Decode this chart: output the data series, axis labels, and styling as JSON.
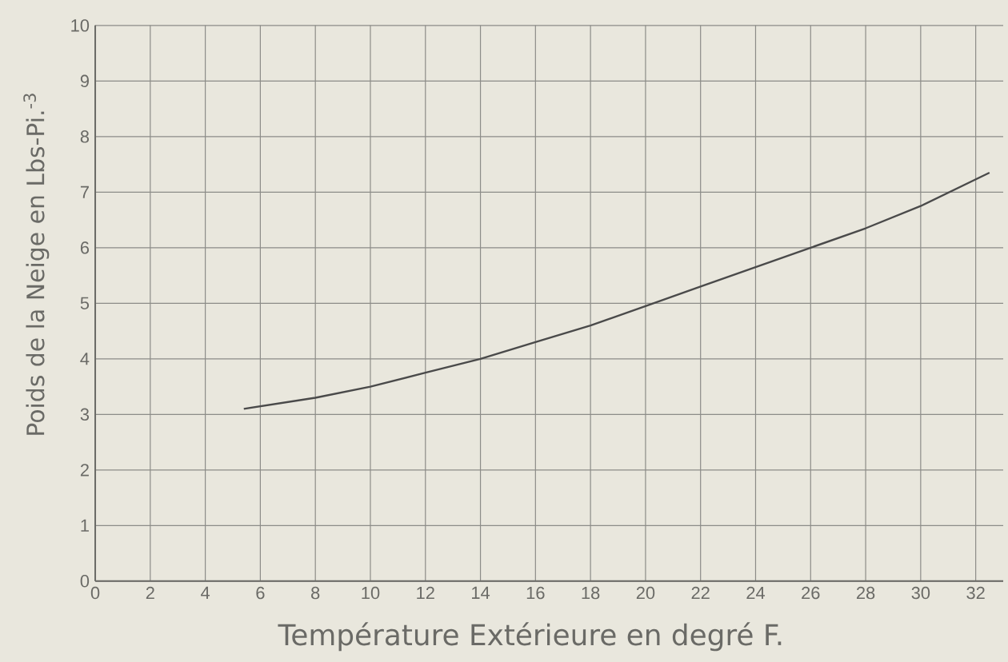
{
  "chart_data": {
    "type": "line",
    "xlabel": "Température Extérieure en degré F.",
    "ylabel": "Poids de la Neige en Lbs-Pi.$^{-3}$",
    "x": [
      5.4,
      8,
      10,
      12,
      14,
      16,
      18,
      20,
      22,
      24,
      26,
      28,
      30,
      32.5
    ],
    "series": [
      {
        "color": "#4a4a4a",
        "values": [
          3.1,
          3.3,
          3.5,
          3.75,
          4.0,
          4.3,
          4.6,
          4.95,
          5.3,
          5.65,
          6.0,
          6.35,
          6.75,
          7.35
        ]
      }
    ],
    "xlim": [
      0,
      33
    ],
    "ylim": [
      0,
      10
    ],
    "xticks": [
      0,
      2,
      4,
      6,
      8,
      10,
      12,
      14,
      16,
      18,
      20,
      22,
      24,
      26,
      28,
      30,
      32
    ],
    "yticks": [
      0,
      1,
      2,
      3,
      4,
      5,
      6,
      7,
      8,
      9,
      10
    ],
    "grid": true,
    "marker": "none",
    "line_style": "solid"
  }
}
